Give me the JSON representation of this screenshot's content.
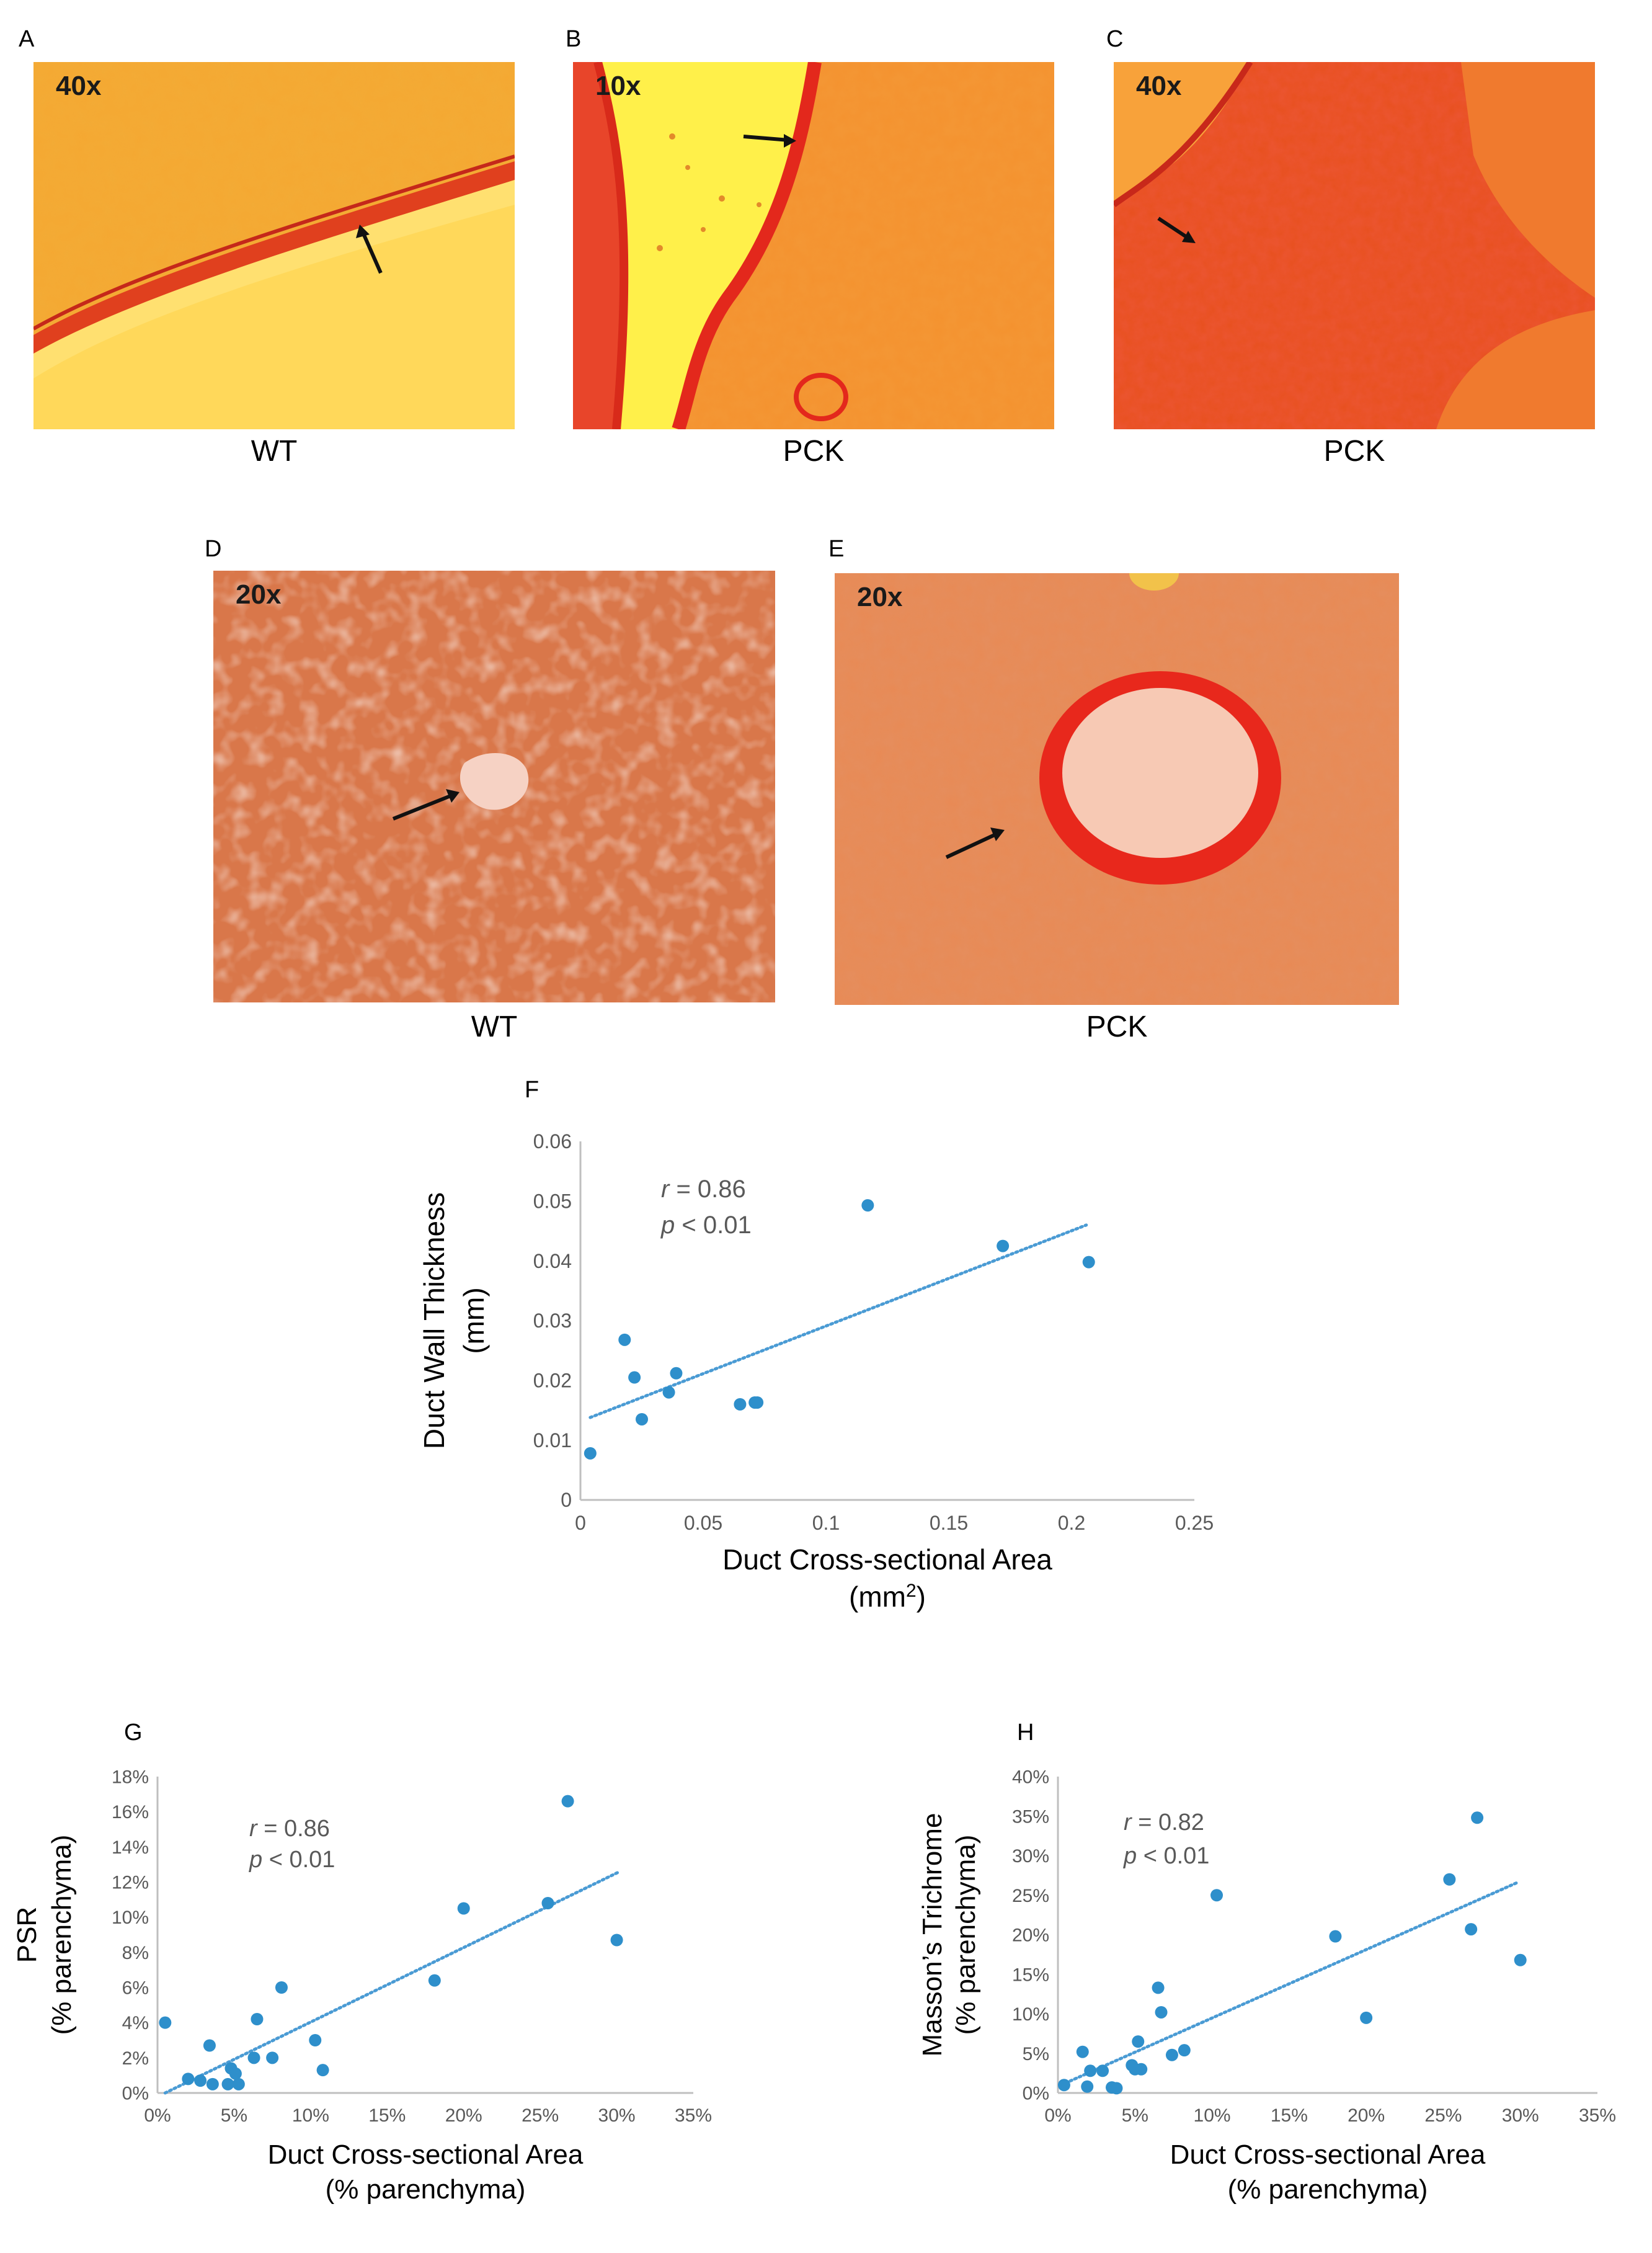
{
  "panels": [
    {
      "letter": "A",
      "magnification": "40x",
      "caption": "WT"
    },
    {
      "letter": "B",
      "magnification": "10x",
      "caption": "PCK"
    },
    {
      "letter": "C",
      "magnification": "40x",
      "caption": "PCK"
    },
    {
      "letter": "D",
      "magnification": "20x",
      "caption": "WT"
    },
    {
      "letter": "E",
      "magnification": "20x",
      "caption": "PCK"
    }
  ],
  "colors": {
    "point": "#2E8FCB",
    "trend": "#4A9BD4",
    "axis": "#BFBFBF",
    "tick_text": "#595959",
    "stain_red": "#E8281C",
    "stain_orange": "#F4922F",
    "stain_yellow": "#FFD24A"
  },
  "chart_data": [
    {
      "panel": "F",
      "type": "scatter",
      "xlabel": "Duct Cross-sectional Area",
      "xlabel_unit": "(mm",
      "xlabel_unit_sup": "2",
      "xlabel_unit_end": ")",
      "ylabel": "Duct Wall Thickness",
      "ylabel_unit": "(mm)",
      "xlim": [
        0,
        0.25
      ],
      "ylim": [
        0,
        0.06
      ],
      "xticks": [
        "0",
        "0.05",
        "0.1",
        "0.15",
        "0.2",
        "0.25"
      ],
      "yticks": [
        "0",
        "0.01",
        "0.02",
        "0.03",
        "0.04",
        "0.05",
        "0.06"
      ],
      "xtick_values": [
        0,
        0.05,
        0.1,
        0.15,
        0.2,
        0.25
      ],
      "ytick_values": [
        0,
        0.01,
        0.02,
        0.03,
        0.04,
        0.05,
        0.06
      ],
      "stat_r_label": "r",
      "stat_r_value": " = 0.86",
      "stat_p_label": "p",
      "stat_p_value": " < 0.01",
      "points": [
        [
          0.004,
          0.0078
        ],
        [
          0.018,
          0.0268
        ],
        [
          0.022,
          0.0205
        ],
        [
          0.025,
          0.0135
        ],
        [
          0.036,
          0.018
        ],
        [
          0.039,
          0.0212
        ],
        [
          0.065,
          0.016
        ],
        [
          0.071,
          0.0163
        ],
        [
          0.072,
          0.0163
        ],
        [
          0.117,
          0.0493
        ],
        [
          0.172,
          0.0425
        ],
        [
          0.207,
          0.0398
        ]
      ],
      "trendline": [
        [
          0.004,
          0.0138
        ],
        [
          0.206,
          0.046
        ]
      ]
    },
    {
      "panel": "G",
      "type": "scatter",
      "xlabel": "Duct Cross-sectional Area",
      "xlabel_unit": "(% parenchyma)",
      "ylabel": "PSR",
      "ylabel_unit": "(% parenchyma)",
      "xlim": [
        0,
        0.35
      ],
      "ylim": [
        0,
        0.18
      ],
      "xticks": [
        "0%",
        "5%",
        "10%",
        "15%",
        "20%",
        "25%",
        "30%",
        "35%"
      ],
      "yticks": [
        "0%",
        "2%",
        "4%",
        "6%",
        "8%",
        "10%",
        "12%",
        "14%",
        "16%",
        "18%"
      ],
      "xtick_values": [
        0,
        0.05,
        0.1,
        0.15,
        0.2,
        0.25,
        0.3,
        0.35
      ],
      "ytick_values": [
        0,
        0.02,
        0.04,
        0.06,
        0.08,
        0.1,
        0.12,
        0.14,
        0.16,
        0.18
      ],
      "stat_r_label": "r",
      "stat_r_value": " = 0.86",
      "stat_p_label": "p",
      "stat_p_value": " < 0.01",
      "points": [
        [
          0.005,
          0.04
        ],
        [
          0.02,
          0.008
        ],
        [
          0.028,
          0.007
        ],
        [
          0.034,
          0.027
        ],
        [
          0.036,
          0.005
        ],
        [
          0.046,
          0.005
        ],
        [
          0.048,
          0.014
        ],
        [
          0.051,
          0.011
        ],
        [
          0.053,
          0.005
        ],
        [
          0.063,
          0.02
        ],
        [
          0.065,
          0.042
        ],
        [
          0.075,
          0.02
        ],
        [
          0.081,
          0.06
        ],
        [
          0.103,
          0.03
        ],
        [
          0.108,
          0.013
        ],
        [
          0.181,
          0.064
        ],
        [
          0.2,
          0.105
        ],
        [
          0.255,
          0.108
        ],
        [
          0.268,
          0.166
        ],
        [
          0.3,
          0.087
        ]
      ],
      "trendline": [
        [
          0.005,
          0.0
        ],
        [
          0.302,
          0.126
        ]
      ]
    },
    {
      "panel": "H",
      "type": "scatter",
      "xlabel": "Duct Cross-sectional Area",
      "xlabel_unit": "(% parenchyma)",
      "ylabel": "Masson’s Trichrome",
      "ylabel_unit": "(% parenchyma)",
      "xlim": [
        0,
        0.35
      ],
      "ylim": [
        0,
        0.4
      ],
      "xticks": [
        "0%",
        "5%",
        "10%",
        "15%",
        "20%",
        "25%",
        "30%",
        "35%"
      ],
      "yticks": [
        "0%",
        "5%",
        "10%",
        "15%",
        "20%",
        "25%",
        "30%",
        "35%",
        "40%"
      ],
      "xtick_values": [
        0,
        0.05,
        0.1,
        0.15,
        0.2,
        0.25,
        0.3,
        0.35
      ],
      "ytick_values": [
        0,
        0.05,
        0.1,
        0.15,
        0.2,
        0.25,
        0.3,
        0.35,
        0.4
      ],
      "stat_r_label": "r",
      "stat_r_value": " = 0.82",
      "stat_p_label": "p",
      "stat_p_value": " < 0.01",
      "points": [
        [
          0.004,
          0.01
        ],
        [
          0.016,
          0.052
        ],
        [
          0.019,
          0.008
        ],
        [
          0.021,
          0.028
        ],
        [
          0.029,
          0.028
        ],
        [
          0.035,
          0.007
        ],
        [
          0.038,
          0.006
        ],
        [
          0.048,
          0.035
        ],
        [
          0.05,
          0.03
        ],
        [
          0.052,
          0.065
        ],
        [
          0.054,
          0.03
        ],
        [
          0.065,
          0.133
        ],
        [
          0.067,
          0.102
        ],
        [
          0.074,
          0.048
        ],
        [
          0.082,
          0.054
        ],
        [
          0.103,
          0.25
        ],
        [
          0.18,
          0.198
        ],
        [
          0.2,
          0.095
        ],
        [
          0.254,
          0.27
        ],
        [
          0.268,
          0.207
        ],
        [
          0.272,
          0.348
        ],
        [
          0.3,
          0.168
        ]
      ],
      "trendline": [
        [
          0.002,
          0.01
        ],
        [
          0.298,
          0.266
        ]
      ]
    }
  ]
}
